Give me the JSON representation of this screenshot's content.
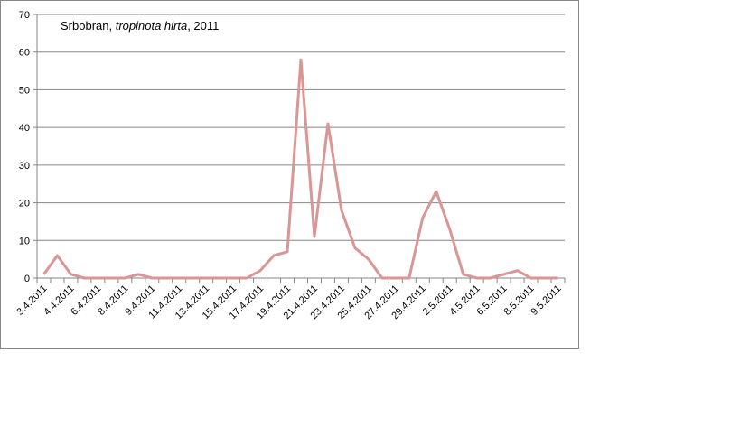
{
  "chart_data": {
    "type": "line",
    "title_parts": [
      "Srbobran, ",
      "tropinota hirta",
      ", 2011"
    ],
    "categories": [
      "3.4.2011",
      null,
      "4.4.2011",
      null,
      "6.4.2011",
      null,
      "8.4.2011",
      null,
      "9.4.2011",
      null,
      "11.4.2011",
      null,
      "13.4.2011",
      null,
      "15.4.2011",
      null,
      "17.4.2011",
      null,
      "19.4.2011",
      null,
      "21.4.2011",
      null,
      "23.4.2011",
      null,
      "25.4.2011",
      null,
      "27.4.2011",
      null,
      "29.4.2011",
      null,
      "2.5.2011",
      null,
      "4.5.2011",
      null,
      "6.5.2011",
      null,
      "8.5.2011",
      null,
      "9.5.2011"
    ],
    "series": [
      {
        "color": "#d99694",
        "values": [
          1,
          6,
          1,
          0,
          0,
          0,
          0,
          1,
          0,
          0,
          0,
          0,
          0,
          0,
          0,
          0,
          2,
          6,
          7,
          58,
          11,
          41,
          18,
          8,
          5,
          0,
          0,
          0,
          16,
          23,
          13,
          1,
          0,
          0,
          1,
          2,
          0,
          0,
          0
        ]
      }
    ],
    "ylim": [
      0,
      70
    ],
    "yticks": [
      0,
      10,
      20,
      30,
      40,
      50,
      60,
      70
    ],
    "grid": true
  }
}
